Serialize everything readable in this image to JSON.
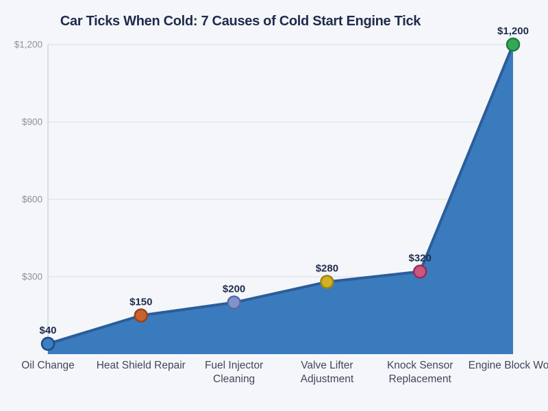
{
  "chart_data": {
    "type": "area",
    "title": "Car Ticks When Cold: 7 Causes of Cold Start Engine Tick",
    "categories": [
      "Oil Change",
      "Heat Shield Repair",
      "Fuel Injector Cleaning",
      "Valve Lifter Adjustment",
      "Knock Sensor Replacement",
      "Engine Block Work"
    ],
    "category_label_lines": [
      [
        "Oil Change"
      ],
      [
        "Heat Shield Repair"
      ],
      [
        "Fuel Injector",
        "Cleaning"
      ],
      [
        "Valve Lifter",
        "Adjustment"
      ],
      [
        "Knock Sensor",
        "Replacement"
      ],
      [
        "Engine Block Work"
      ]
    ],
    "values": [
      40,
      150,
      200,
      280,
      320,
      1200
    ],
    "point_labels": [
      "$40",
      "$150",
      "$200",
      "$280",
      "$320",
      "$1,200"
    ],
    "yticks": [
      300,
      600,
      900,
      1200
    ],
    "ytick_labels": [
      "$300",
      "$600",
      "$900",
      "$1,200"
    ],
    "ylim": [
      0,
      1200
    ],
    "grid": true,
    "legend": false,
    "xlabel": "",
    "ylabel": "",
    "marker_fills": [
      "#3c7ec4",
      "#cb6130",
      "#8093c9",
      "#d0b121",
      "#cc5680",
      "#35a855"
    ],
    "marker_strokes": [
      "#1d4a80",
      "#96421a",
      "#5a68a5",
      "#9b8214",
      "#8e2f58",
      "#1d7d3c"
    ],
    "colors": {
      "background": "#f4f6fa",
      "area_fill": "#3a7bbe",
      "line": "#2b5d9b",
      "grid": "#d9dce2",
      "spine": "#c8ccd4",
      "title": "#1f2b4c",
      "value_label": "#1f2b4c",
      "ytick_label": "#8d9099",
      "category_label": "#40475a"
    }
  }
}
